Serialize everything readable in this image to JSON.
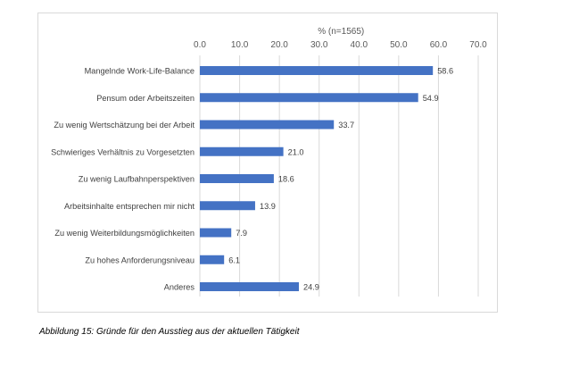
{
  "chart_data": {
    "type": "bar",
    "orientation": "horizontal",
    "axis_title": "% (n=1565)",
    "axis_position": "top",
    "xlim": [
      0,
      70
    ],
    "ticks": [
      "0.0",
      "10.0",
      "20.0",
      "30.0",
      "40.0",
      "50.0",
      "60.0",
      "70.0"
    ],
    "grid": true,
    "bar_color": "#4472c4",
    "categories": [
      "Mangelnde Work-Life-Balance",
      "Pensum oder Arbeitszeiten",
      "Zu wenig Wertschätzung bei der Arbeit",
      "Schwieriges Verhältnis zu Vorgesetzten",
      "Zu wenig Laufbahnperspektiven",
      "Arbeitsinhalte entsprechen mir nicht",
      "Zu wenig Weiterbildungsmöglichkeiten",
      "Zu hohes Anforderungsniveau",
      "Anderes"
    ],
    "values": [
      58.6,
      54.9,
      33.7,
      21.0,
      18.6,
      13.9,
      7.9,
      6.1,
      24.9
    ],
    "value_labels": [
      "58.6",
      "54.9",
      "33.7",
      "21.0",
      "18.6",
      "13.9",
      "7.9",
      "6.1",
      "24.9"
    ]
  },
  "caption": "Abbildung 15: Gründe für den Ausstieg aus der aktuellen Tätigkeit"
}
